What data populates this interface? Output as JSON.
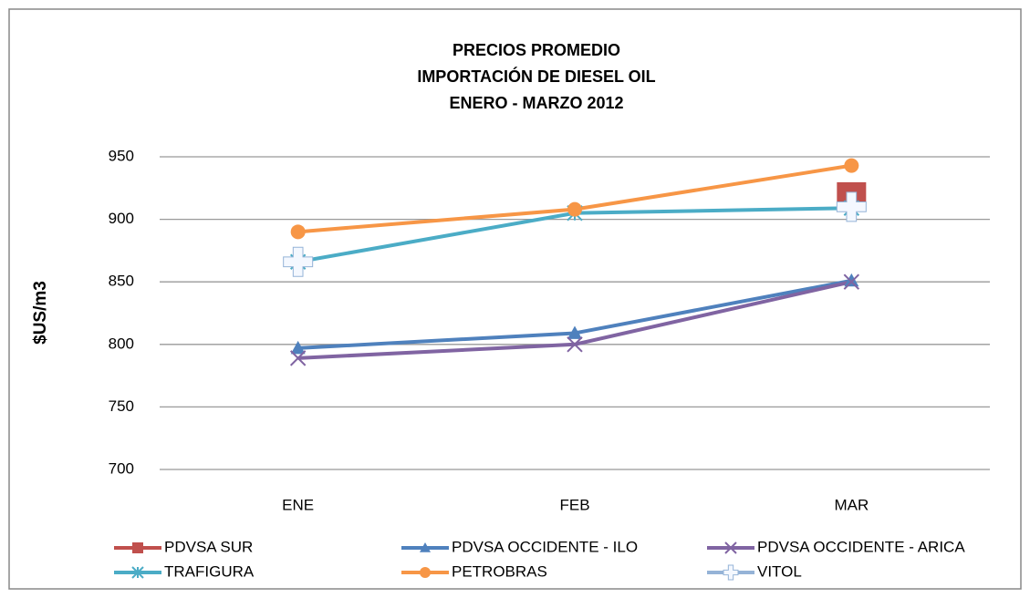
{
  "chart_data": {
    "type": "line",
    "title": [
      "PRECIOS PROMEDIO",
      "IMPORTACIÓN DE DIESEL OIL",
      "ENERO - MARZO 2012"
    ],
    "y_label": "$US/m3",
    "categories": [
      "ENE",
      "FEB",
      "MAR"
    ],
    "series": [
      {
        "name": "PDVSA SUR",
        "color": "#c0504d",
        "marker": "square",
        "values": [
          null,
          null,
          918
        ]
      },
      {
        "name": "PDVSA OCCIDENTE - ILO",
        "color": "#4f81bd",
        "marker": "triangle",
        "values": [
          797,
          809,
          851
        ]
      },
      {
        "name": "PDVSA OCCIDENTE - ARICA",
        "color": "#8064a2",
        "marker": "x",
        "values": [
          789,
          800,
          850
        ]
      },
      {
        "name": "TRAFIGURA",
        "color": "#4bacc6",
        "marker": "star",
        "values": [
          866,
          905,
          909
        ]
      },
      {
        "name": "PETROBRAS",
        "color": "#f79646",
        "marker": "circle",
        "values": [
          890,
          908,
          943
        ]
      },
      {
        "name": "VITOL",
        "color": "#95b3d7",
        "marker": "plus",
        "values": [
          866,
          null,
          910
        ]
      }
    ],
    "ylim": [
      700,
      950
    ],
    "yticks": [
      700,
      750,
      800,
      850,
      900,
      950
    ],
    "grid": true,
    "legend": "bottom"
  }
}
